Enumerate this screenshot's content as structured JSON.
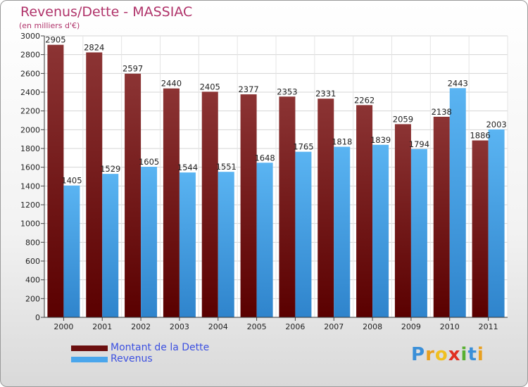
{
  "header": {
    "title": "Revenus/Dette - MASSIAC",
    "subtitle": "(en milliers d'€)"
  },
  "legend": {
    "items": [
      {
        "label": "Montant de la Dette",
        "color": "#6b0f0f"
      },
      {
        "label": "Revenus",
        "color": "#4aa6ec"
      }
    ]
  },
  "logo": {
    "text": "Proxiti",
    "letters": [
      "P",
      "r",
      "o",
      "x",
      "i",
      "t",
      "i"
    ],
    "colors": [
      "#3a8fd8",
      "#e8a020",
      "#f0c020",
      "#e03020",
      "#58b030",
      "#3a8fd8",
      "#e8a020"
    ]
  },
  "chart_data": {
    "type": "bar",
    "title": "Revenus/Dette - MASSIAC",
    "subtitle": "(en milliers d'€)",
    "categories": [
      "2000",
      "2001",
      "2002",
      "2003",
      "2004",
      "2005",
      "2006",
      "2007",
      "2008",
      "2009",
      "2010",
      "2011"
    ],
    "series": [
      {
        "name": "Montant de la Dette",
        "color": "#7a1f1f",
        "values": [
          2905,
          2824,
          2597,
          2440,
          2405,
          2377,
          2353,
          2331,
          2262,
          2059,
          2138,
          1886
        ]
      },
      {
        "name": "Revenus",
        "color": "#4aa6ec",
        "values": [
          1405,
          1529,
          1605,
          1544,
          1551,
          1648,
          1765,
          1818,
          1839,
          1794,
          2443,
          2003
        ]
      }
    ],
    "yticks": [
      0,
      200,
      400,
      600,
      800,
      1000,
      1200,
      1400,
      1600,
      1800,
      2000,
      2200,
      2400,
      2600,
      2800,
      3000
    ],
    "ylim": [
      0,
      3000
    ],
    "grid": true,
    "legend_position": "bottom-left"
  }
}
